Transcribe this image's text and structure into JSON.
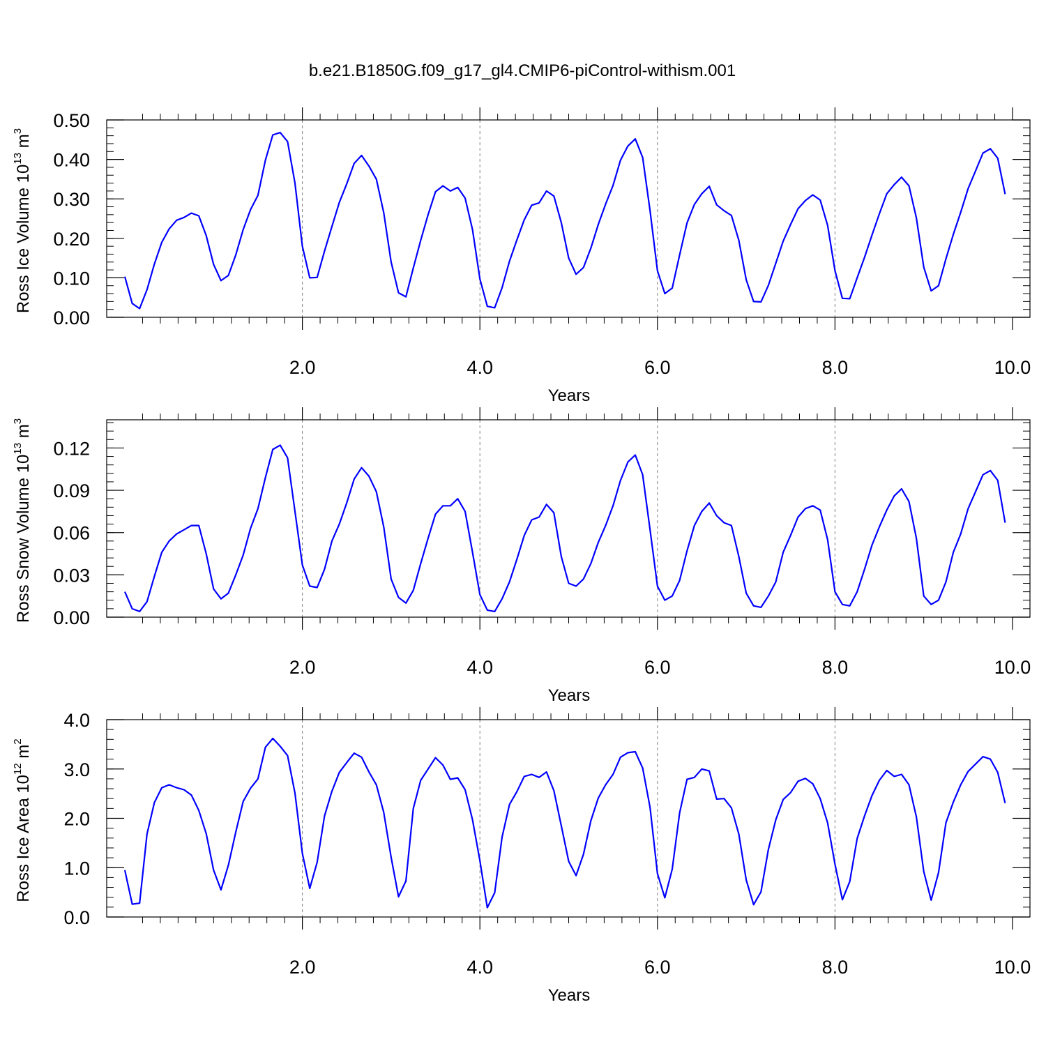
{
  "title": "b.e21.B1850G.f09_g17_gl4.CMIP6-piControl-withism.001",
  "chart_data": [
    {
      "type": "line",
      "color": "#0000ff",
      "xlabel": "Years",
      "ylabel": {
        "main": "Ross Ice Volume 10",
        "exp": "13",
        "mid": " m",
        "unit_exp": "3"
      },
      "xlim": [
        0,
        10
      ],
      "ylim": [
        0,
        0.5
      ],
      "xticks": [
        {
          "v": 2,
          "label": "2.0"
        },
        {
          "v": 4,
          "label": "4.0"
        },
        {
          "v": 6,
          "label": "6.0"
        },
        {
          "v": 8,
          "label": "8.0"
        },
        {
          "v": 10,
          "label": "10.0"
        }
      ],
      "yticks": [
        {
          "v": 0.0,
          "label": "0.00"
        },
        {
          "v": 0.1,
          "label": "0.10"
        },
        {
          "v": 0.2,
          "label": "0.20"
        },
        {
          "v": 0.3,
          "label": "0.30"
        },
        {
          "v": 0.4,
          "label": "0.40"
        },
        {
          "v": 0.5,
          "label": "0.50"
        }
      ],
      "minor_y_step": 0.02,
      "x_start": 0.0,
      "x_step": 0.0833333,
      "values": [
        0.103,
        0.035,
        0.022,
        0.07,
        0.135,
        0.19,
        0.224,
        0.246,
        0.253,
        0.264,
        0.257,
        0.207,
        0.134,
        0.093,
        0.106,
        0.158,
        0.222,
        0.273,
        0.309,
        0.398,
        0.462,
        0.468,
        0.445,
        0.34,
        0.18,
        0.1,
        0.101,
        0.168,
        0.23,
        0.291,
        0.338,
        0.39,
        0.41,
        0.383,
        0.35,
        0.265,
        0.14,
        0.062,
        0.052,
        0.125,
        0.195,
        0.26,
        0.318,
        0.333,
        0.32,
        0.329,
        0.302,
        0.222,
        0.097,
        0.028,
        0.024,
        0.075,
        0.142,
        0.196,
        0.247,
        0.284,
        0.29,
        0.32,
        0.307,
        0.24,
        0.15,
        0.109,
        0.126,
        0.175,
        0.235,
        0.287,
        0.334,
        0.398,
        0.434,
        0.452,
        0.405,
        0.27,
        0.118,
        0.06,
        0.074,
        0.158,
        0.239,
        0.286,
        0.313,
        0.332,
        0.285,
        0.27,
        0.258,
        0.195,
        0.095,
        0.04,
        0.039,
        0.081,
        0.137,
        0.193,
        0.235,
        0.275,
        0.296,
        0.31,
        0.297,
        0.233,
        0.118,
        0.048,
        0.047,
        0.1,
        0.152,
        0.208,
        0.262,
        0.313,
        0.336,
        0.355,
        0.333,
        0.252,
        0.127,
        0.067,
        0.08,
        0.148,
        0.21,
        0.266,
        0.326,
        0.371,
        0.416,
        0.427,
        0.403,
        0.312
      ]
    },
    {
      "type": "line",
      "color": "#0000ff",
      "xlabel": "Years",
      "ylabel": {
        "main": "Ross Snow Volume 10",
        "exp": "13",
        "mid": " m",
        "unit_exp": "3"
      },
      "xlim": [
        0,
        10
      ],
      "ylim": [
        0,
        0.14
      ],
      "xticks": [
        {
          "v": 2,
          "label": "2.0"
        },
        {
          "v": 4,
          "label": "4.0"
        },
        {
          "v": 6,
          "label": "6.0"
        },
        {
          "v": 8,
          "label": "8.0"
        },
        {
          "v": 10,
          "label": "10.0"
        }
      ],
      "yticks": [
        {
          "v": 0.0,
          "label": "0.00"
        },
        {
          "v": 0.03,
          "label": "0.03"
        },
        {
          "v": 0.06,
          "label": "0.06"
        },
        {
          "v": 0.09,
          "label": "0.09"
        },
        {
          "v": 0.12,
          "label": "0.12"
        }
      ],
      "minor_y_step": 0.006,
      "x_start": 0.0,
      "x_step": 0.0833333,
      "values": [
        0.018,
        0.006,
        0.004,
        0.011,
        0.029,
        0.046,
        0.054,
        0.059,
        0.062,
        0.065,
        0.065,
        0.045,
        0.02,
        0.013,
        0.017,
        0.03,
        0.044,
        0.063,
        0.077,
        0.099,
        0.119,
        0.122,
        0.113,
        0.075,
        0.037,
        0.022,
        0.021,
        0.034,
        0.054,
        0.066,
        0.081,
        0.098,
        0.106,
        0.1,
        0.089,
        0.064,
        0.027,
        0.014,
        0.01,
        0.019,
        0.038,
        0.056,
        0.073,
        0.079,
        0.079,
        0.084,
        0.075,
        0.046,
        0.016,
        0.005,
        0.004,
        0.013,
        0.025,
        0.041,
        0.058,
        0.069,
        0.071,
        0.08,
        0.074,
        0.043,
        0.024,
        0.022,
        0.027,
        0.038,
        0.053,
        0.065,
        0.079,
        0.097,
        0.11,
        0.115,
        0.101,
        0.062,
        0.022,
        0.012,
        0.015,
        0.026,
        0.047,
        0.065,
        0.075,
        0.081,
        0.072,
        0.067,
        0.065,
        0.043,
        0.017,
        0.008,
        0.007,
        0.015,
        0.025,
        0.046,
        0.058,
        0.071,
        0.077,
        0.079,
        0.076,
        0.055,
        0.018,
        0.009,
        0.008,
        0.018,
        0.034,
        0.051,
        0.064,
        0.076,
        0.086,
        0.091,
        0.082,
        0.056,
        0.015,
        0.009,
        0.012,
        0.025,
        0.046,
        0.059,
        0.077,
        0.089,
        0.101,
        0.104,
        0.097,
        0.067
      ]
    },
    {
      "type": "line",
      "color": "#0000ff",
      "xlabel": "Years",
      "ylabel": {
        "main": "Ross Ice Area 10",
        "exp": "12",
        "mid": " m",
        "unit_exp": "2"
      },
      "xlim": [
        0,
        10
      ],
      "ylim": [
        0,
        4
      ],
      "xticks": [
        {
          "v": 2,
          "label": "2.0"
        },
        {
          "v": 4,
          "label": "4.0"
        },
        {
          "v": 6,
          "label": "6.0"
        },
        {
          "v": 8,
          "label": "8.0"
        },
        {
          "v": 10,
          "label": "10.0"
        }
      ],
      "yticks": [
        {
          "v": 0.0,
          "label": "0.0"
        },
        {
          "v": 1.0,
          "label": "1.0"
        },
        {
          "v": 2.0,
          "label": "2.0"
        },
        {
          "v": 3.0,
          "label": "3.0"
        },
        {
          "v": 4.0,
          "label": "4.0"
        }
      ],
      "minor_y_step": 0.2,
      "x_start": 0.0,
      "x_step": 0.0833333,
      "values": [
        0.95,
        0.26,
        0.28,
        1.68,
        2.32,
        2.62,
        2.68,
        2.62,
        2.58,
        2.47,
        2.16,
        1.69,
        0.95,
        0.55,
        1.05,
        1.72,
        2.34,
        2.61,
        2.8,
        3.44,
        3.62,
        3.46,
        3.27,
        2.51,
        1.29,
        0.58,
        1.11,
        2.05,
        2.55,
        2.93,
        3.13,
        3.32,
        3.24,
        2.94,
        2.68,
        2.12,
        1.21,
        0.41,
        0.73,
        2.2,
        2.77,
        3.0,
        3.23,
        3.08,
        2.79,
        2.82,
        2.58,
        1.97,
        1.14,
        0.19,
        0.49,
        1.62,
        2.28,
        2.54,
        2.85,
        2.89,
        2.83,
        2.94,
        2.56,
        1.85,
        1.13,
        0.84,
        1.27,
        1.95,
        2.41,
        2.68,
        2.89,
        3.24,
        3.33,
        3.35,
        3.02,
        2.22,
        0.88,
        0.39,
        0.97,
        2.11,
        2.79,
        2.83,
        3.0,
        2.96,
        2.39,
        2.4,
        2.21,
        1.68,
        0.75,
        0.25,
        0.51,
        1.37,
        1.97,
        2.38,
        2.52,
        2.75,
        2.81,
        2.7,
        2.4,
        1.91,
        1.07,
        0.35,
        0.72,
        1.59,
        2.05,
        2.46,
        2.77,
        2.97,
        2.85,
        2.89,
        2.68,
        2.03,
        0.92,
        0.34,
        0.9,
        1.91,
        2.33,
        2.68,
        2.95,
        3.1,
        3.25,
        3.2,
        2.93,
        2.31
      ]
    }
  ]
}
